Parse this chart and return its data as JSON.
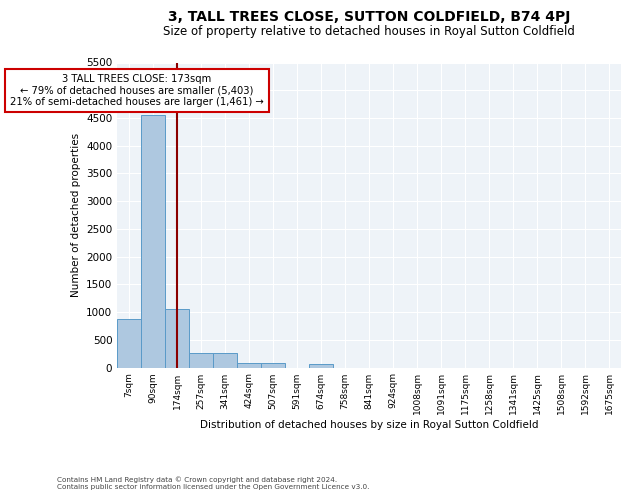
{
  "title": "3, TALL TREES CLOSE, SUTTON COLDFIELD, B74 4PJ",
  "subtitle": "Size of property relative to detached houses in Royal Sutton Coldfield",
  "xlabel": "Distribution of detached houses by size in Royal Sutton Coldfield",
  "ylabel": "Number of detached properties",
  "footnote1": "Contains HM Land Registry data © Crown copyright and database right 2024.",
  "footnote2": "Contains public sector information licensed under the Open Government Licence v3.0.",
  "bin_labels": [
    "7sqm",
    "90sqm",
    "174sqm",
    "257sqm",
    "341sqm",
    "424sqm",
    "507sqm",
    "591sqm",
    "674sqm",
    "758sqm",
    "841sqm",
    "924sqm",
    "1008sqm",
    "1091sqm",
    "1175sqm",
    "1258sqm",
    "1341sqm",
    "1425sqm",
    "1508sqm",
    "1592sqm",
    "1675sqm"
  ],
  "bar_values": [
    880,
    4560,
    1060,
    270,
    265,
    90,
    85,
    0,
    70,
    0,
    0,
    0,
    0,
    0,
    0,
    0,
    0,
    0,
    0,
    0,
    0
  ],
  "bar_color": "#aec8e0",
  "bar_edge_color": "#5a9ac8",
  "property_line_x": 2,
  "property_line_color": "#8b0000",
  "annotation_text": "3 TALL TREES CLOSE: 173sqm\n← 79% of detached houses are smaller (5,403)\n21% of semi-detached houses are larger (1,461) →",
  "annotation_box_color": "#ffffff",
  "annotation_box_edge_color": "#cc0000",
  "ylim": [
    0,
    5500
  ],
  "yticks": [
    0,
    500,
    1000,
    1500,
    2000,
    2500,
    3000,
    3500,
    4000,
    4500,
    5000,
    5500
  ],
  "bg_color": "#eef3f8",
  "fig_bg_color": "#ffffff",
  "title_fontsize": 10,
  "subtitle_fontsize": 8.5
}
